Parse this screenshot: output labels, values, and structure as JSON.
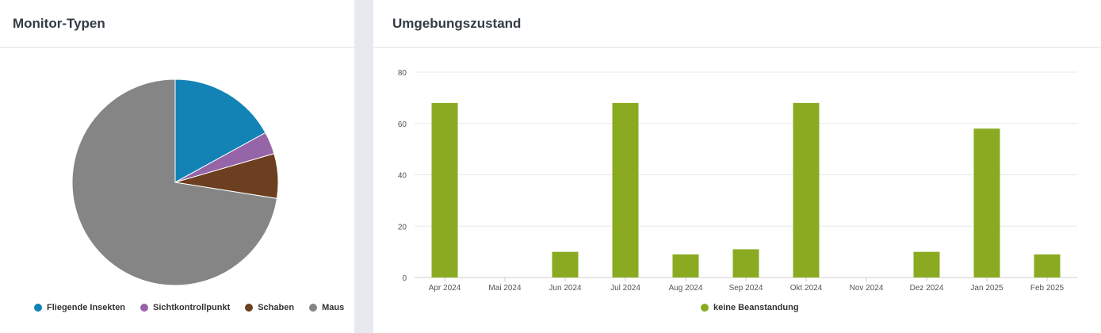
{
  "left_panel": {
    "title": "Monitor-Typen"
  },
  "right_panel": {
    "title": "Umgebungszustand"
  },
  "chart_data": [
    {
      "type": "pie",
      "title": "Monitor-Typen",
      "slices": [
        {
          "label": "Fliegende Insekten",
          "value": 17,
          "color": "#1383b6"
        },
        {
          "label": "Sichtkontrollpunkt",
          "value": 3.5,
          "color": "#9565a8"
        },
        {
          "label": "Schaben",
          "value": 7,
          "color": "#6b3f1f"
        },
        {
          "label": "Maus",
          "value": 72.5,
          "color": "#858585"
        }
      ],
      "legend_position": "bottom"
    },
    {
      "type": "bar",
      "title": "Umgebungszustand",
      "categories": [
        "Apr 2024",
        "Mai 2024",
        "Jun 2024",
        "Jul 2024",
        "Aug 2024",
        "Sep 2024",
        "Okt 2024",
        "Nov 2024",
        "Dez 2024",
        "Jan 2025",
        "Feb 2025"
      ],
      "series": [
        {
          "name": "keine Beanstandung",
          "color": "#8aab21",
          "values": [
            68,
            0,
            10,
            68,
            9,
            11,
            68,
            0,
            10,
            58,
            9
          ]
        }
      ],
      "ylim": [
        0,
        80
      ],
      "yticks": [
        "0",
        "20",
        "40",
        "60",
        "80"
      ],
      "grid": true,
      "legend_position": "bottom"
    }
  ]
}
